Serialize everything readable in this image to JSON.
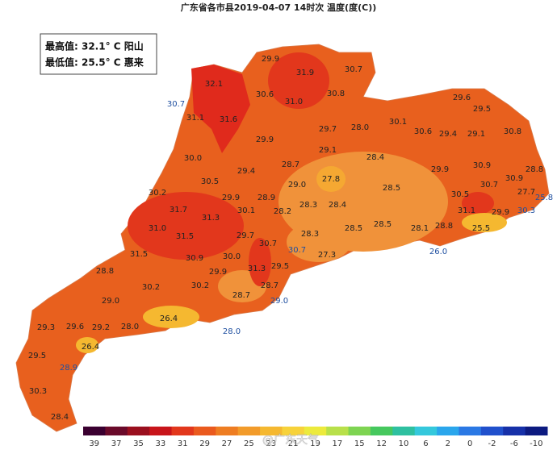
{
  "title": "广东省各市县2019-04-07 14时次 温度(度(C))",
  "info_box": [
    "最高值: 32.1° C 阳山",
    "最低值: 25.5° C 惠来"
  ],
  "watermark": "@广东天气",
  "labels": [
    {
      "text": "29.9",
      "color": "#222"
    },
    {
      "text": "31.9",
      "color": "#222"
    },
    {
      "text": "30.7",
      "color": "#222"
    },
    {
      "text": "32.1",
      "color": "#222"
    },
    {
      "text": "30.6",
      "color": "#222"
    },
    {
      "text": "31.0",
      "color": "#222"
    },
    {
      "text": "30.8",
      "color": "#222"
    },
    {
      "text": "30.7",
      "color": "#1f4fa0"
    },
    {
      "text": "31.1",
      "color": "#222"
    },
    {
      "text": "31.6",
      "color": "#222"
    },
    {
      "text": "29.6",
      "color": "#222"
    },
    {
      "text": "29.5",
      "color": "#222"
    },
    {
      "text": "30.1",
      "color": "#222"
    },
    {
      "text": "30.6",
      "color": "#222"
    },
    {
      "text": "28.0",
      "color": "#222"
    },
    {
      "text": "29.7",
      "color": "#222"
    },
    {
      "text": "29.4",
      "color": "#222"
    },
    {
      "text": "29.1",
      "color": "#222"
    },
    {
      "text": "30.8",
      "color": "#222"
    },
    {
      "text": "29.9",
      "color": "#222"
    },
    {
      "text": "29.1",
      "color": "#222"
    },
    {
      "text": "28.4",
      "color": "#222"
    },
    {
      "text": "30.0",
      "color": "#222"
    },
    {
      "text": "28.7",
      "color": "#222"
    },
    {
      "text": "29.4",
      "color": "#222"
    },
    {
      "text": "27.8",
      "color": "#222"
    },
    {
      "text": "29.9",
      "color": "#222"
    },
    {
      "text": "30.9",
      "color": "#222"
    },
    {
      "text": "28.8",
      "color": "#222"
    },
    {
      "text": "30.9",
      "color": "#222"
    },
    {
      "text": "29.0",
      "color": "#222"
    },
    {
      "text": "30.5",
      "color": "#222"
    },
    {
      "text": "28.5",
      "color": "#222"
    },
    {
      "text": "30.7",
      "color": "#222"
    },
    {
      "text": "27.7",
      "color": "#222"
    },
    {
      "text": "25.8",
      "color": "#1f4fa0"
    },
    {
      "text": "30.2",
      "color": "#222"
    },
    {
      "text": "29.9",
      "color": "#222"
    },
    {
      "text": "28.9",
      "color": "#222"
    },
    {
      "text": "30.5",
      "color": "#222"
    },
    {
      "text": "28.3",
      "color": "#222"
    },
    {
      "text": "28.4",
      "color": "#222"
    },
    {
      "text": "31.7",
      "color": "#222"
    },
    {
      "text": "31.3",
      "color": "#222"
    },
    {
      "text": "30.1",
      "color": "#222"
    },
    {
      "text": "28.2",
      "color": "#222"
    },
    {
      "text": "31.1",
      "color": "#222"
    },
    {
      "text": "29.9",
      "color": "#222"
    },
    {
      "text": "30.3",
      "color": "#1f4fa0"
    },
    {
      "text": "28.5",
      "color": "#222"
    },
    {
      "text": "31.0",
      "color": "#222"
    },
    {
      "text": "28.8",
      "color": "#222"
    },
    {
      "text": "28.1",
      "color": "#222"
    },
    {
      "text": "25.5",
      "color": "#222"
    },
    {
      "text": "28.5",
      "color": "#222"
    },
    {
      "text": "31.5",
      "color": "#222"
    },
    {
      "text": "29.7",
      "color": "#222"
    },
    {
      "text": "28.3",
      "color": "#222"
    },
    {
      "text": "30.7",
      "color": "#222"
    },
    {
      "text": "30.7",
      "color": "#1f4fa0"
    },
    {
      "text": "26.0",
      "color": "#1f4fa0"
    },
    {
      "text": "31.5",
      "color": "#222"
    },
    {
      "text": "30.9",
      "color": "#222"
    },
    {
      "text": "30.0",
      "color": "#222"
    },
    {
      "text": "27.3",
      "color": "#222"
    },
    {
      "text": "31.3",
      "color": "#222"
    },
    {
      "text": "29.5",
      "color": "#222"
    },
    {
      "text": "28.8",
      "color": "#222"
    },
    {
      "text": "29.9",
      "color": "#222"
    },
    {
      "text": "30.2",
      "color": "#222"
    },
    {
      "text": "30.2",
      "color": "#222"
    },
    {
      "text": "28.7",
      "color": "#222"
    },
    {
      "text": "28.7",
      "color": "#222"
    },
    {
      "text": "29.0",
      "color": "#1f4fa0"
    },
    {
      "text": "29.0",
      "color": "#222"
    },
    {
      "text": "28.0",
      "color": "#222"
    },
    {
      "text": "26.4",
      "color": "#222"
    },
    {
      "text": "28.0",
      "color": "#1f4fa0"
    },
    {
      "text": "29.3",
      "color": "#222"
    },
    {
      "text": "29.6",
      "color": "#222"
    },
    {
      "text": "29.2",
      "color": "#222"
    },
    {
      "text": "26.4",
      "color": "#222"
    },
    {
      "text": "29.5",
      "color": "#222"
    },
    {
      "text": "28.9",
      "color": "#1f4fa0"
    },
    {
      "text": "30.3",
      "color": "#222"
    },
    {
      "text": "28.4",
      "color": "#222"
    }
  ],
  "colorbar": {
    "labels": [
      "39",
      "37",
      "35",
      "33",
      "31",
      "29",
      "27",
      "25",
      "23",
      "21",
      "19",
      "17",
      "15",
      "12",
      "10",
      "6",
      "2",
      "0",
      "-2",
      "-6",
      "-10"
    ],
    "colors": [
      "#3a0030",
      "#6a0a2a",
      "#9a0f1e",
      "#c8141a",
      "#e2371c",
      "#ea5a1e",
      "#ee7d22",
      "#f29b2a",
      "#f5b830",
      "#f7d23a",
      "#ecea3c",
      "#b8e04a",
      "#7ed452",
      "#46c85e",
      "#2ec0a0",
      "#34c8dc",
      "#2aa6ec",
      "#2a78e4",
      "#2050cc",
      "#1630a8",
      "#0c1a80"
    ]
  }
}
